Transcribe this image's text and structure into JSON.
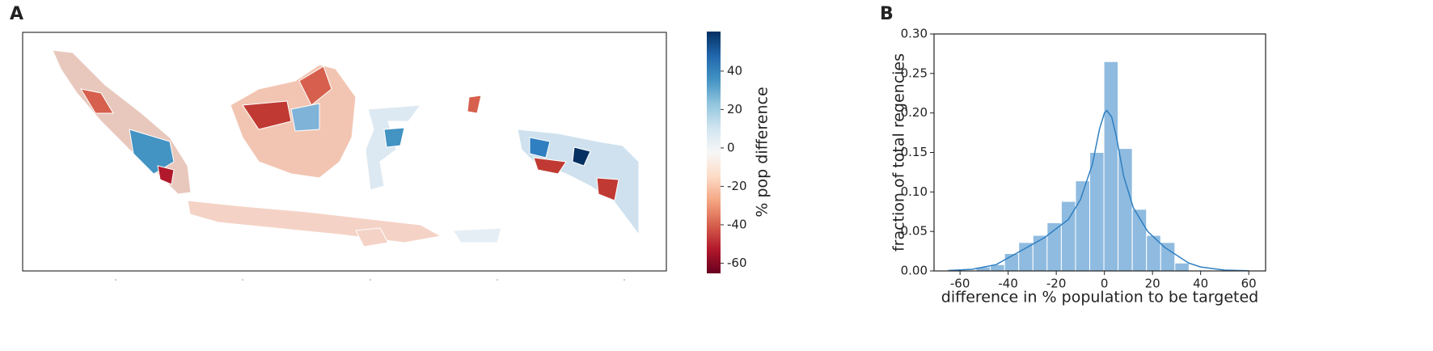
{
  "chart_data": [
    {
      "type": "map",
      "label": "A",
      "colorbar": {
        "label": "% pop difference",
        "lim": [
          -65.3,
          60.6
        ],
        "ticks": [
          -60,
          -40,
          -20,
          0,
          20,
          40
        ],
        "colors": [
          "#67001f",
          "#b2182b",
          "#d6604d",
          "#f4a582",
          "#fddbc7",
          "#f7f7f7",
          "#d1e5f0",
          "#92c5de",
          "#4393c3",
          "#2166ac",
          "#053061"
        ]
      }
    },
    {
      "type": "histogram",
      "label": "B",
      "xlabel": "difference in % population to be targeted",
      "ylabel": "fraction of total regencies",
      "bins": [
        -53.3,
        -47.4,
        -41.5,
        -35.6,
        -29.7,
        -23.8,
        -17.9,
        -12.0,
        -6.1,
        -0.2,
        5.7,
        11.6,
        17.5,
        23.4,
        29.3,
        35.2
      ],
      "values": [
        0.005,
        0.008,
        0.022,
        0.036,
        0.045,
        0.061,
        0.088,
        0.114,
        0.15,
        0.265,
        0.155,
        0.078,
        0.045,
        0.036,
        0.01
      ],
      "color": "#8fbbe0",
      "line_color": "#2f7fc1",
      "kde_x": [
        -65,
        -55,
        -45,
        -35,
        -25,
        -15,
        -10,
        -5,
        -2,
        0,
        1,
        3,
        5,
        8,
        12,
        18,
        25,
        30,
        35,
        40,
        50,
        60
      ],
      "kde_y": [
        0.0005,
        0.002,
        0.008,
        0.025,
        0.042,
        0.065,
        0.09,
        0.135,
        0.18,
        0.2,
        0.203,
        0.195,
        0.17,
        0.12,
        0.08,
        0.05,
        0.03,
        0.02,
        0.01,
        0.005,
        0.001,
        0.0002
      ],
      "xlim": [
        -70.8,
        67
      ],
      "ylim": [
        0,
        0.3
      ],
      "xticks": [
        -60,
        -40,
        -20,
        0,
        20,
        40,
        60
      ],
      "yticks": [
        {
          "value": 0,
          "label": "0.00"
        },
        {
          "value": 0.05,
          "label": "0.05"
        },
        {
          "value": 0.1,
          "label": "0.10"
        },
        {
          "value": 0.15,
          "label": "0.15"
        },
        {
          "value": 0.2,
          "label": "0.20"
        },
        {
          "value": 0.25,
          "label": "0.25"
        },
        {
          "value": 0.3,
          "label": "0.30"
        }
      ]
    }
  ]
}
